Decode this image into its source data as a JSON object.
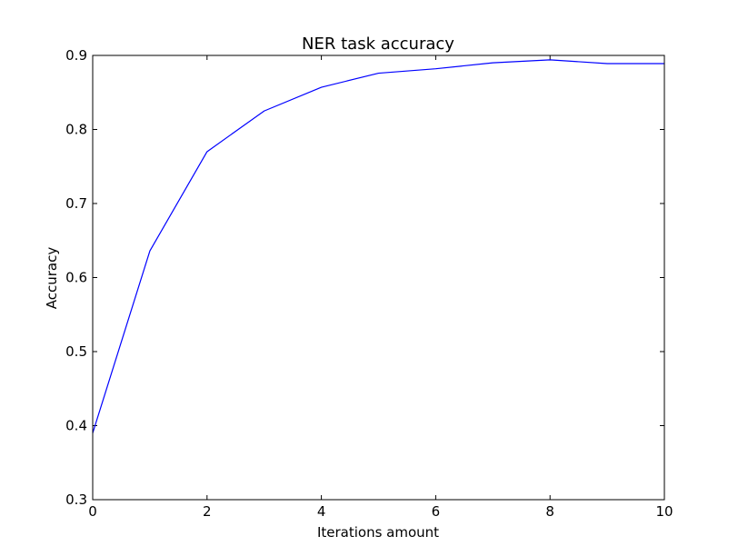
{
  "chart_data": {
    "type": "line",
    "title": "NER task accuracy",
    "xlabel": "Iterations amount",
    "ylabel": "Accuracy",
    "xlim": [
      0,
      10
    ],
    "ylim": [
      0.3,
      0.9
    ],
    "xticks": [
      0,
      2,
      4,
      6,
      8,
      10
    ],
    "yticks": [
      0.3,
      0.4,
      0.5,
      0.6,
      0.7,
      0.8,
      0.9
    ],
    "xtick_labels": [
      "0",
      "2",
      "4",
      "6",
      "8",
      "10"
    ],
    "ytick_labels": [
      "0.3",
      "0.4",
      "0.5",
      "0.6",
      "0.7",
      "0.8",
      "0.9"
    ],
    "grid": false,
    "series": [
      {
        "color": "#0000ff",
        "x": [
          0,
          1,
          2,
          3,
          4,
          5,
          6,
          7,
          8,
          9,
          10
        ],
        "y": [
          0.39,
          0.636,
          0.77,
          0.825,
          0.857,
          0.876,
          0.882,
          0.89,
          0.894,
          0.889,
          0.889
        ]
      }
    ]
  }
}
